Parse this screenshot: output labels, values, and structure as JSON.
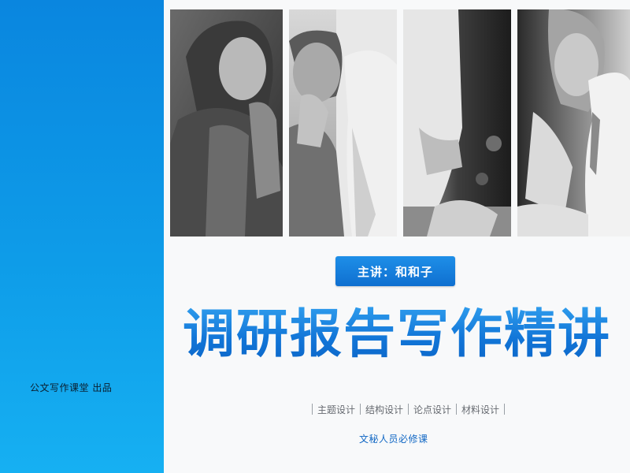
{
  "publisher": "公文写作课堂  出品",
  "speaker": "主讲：和和子",
  "title": "调研报告写作精讲",
  "topics": [
    "主题设计",
    "结构设计",
    "论点设计",
    "材料设计"
  ],
  "audience": "文秘人员必修课",
  "colors": {
    "left_panel_top": "#0a86df",
    "left_panel_bottom": "#16b0f2",
    "title_blue": "#1784e0",
    "badge_blue": "#1576d6"
  },
  "photos": [
    {
      "name": "photo-woman-smiling"
    },
    {
      "name": "photo-man-laughing"
    },
    {
      "name": "photo-man-standing"
    },
    {
      "name": "photo-handshake"
    }
  ]
}
